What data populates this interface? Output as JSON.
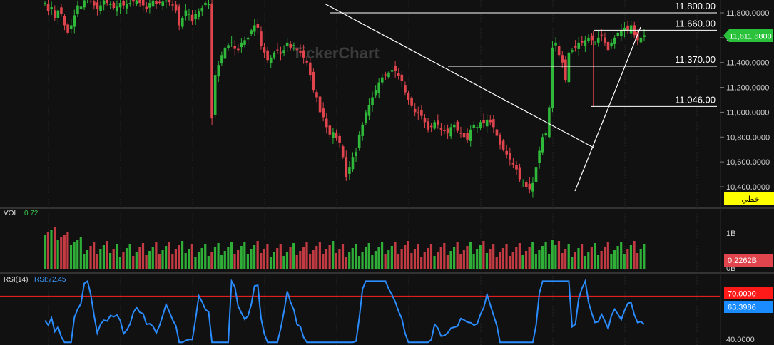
{
  "watermark": "TickerChart",
  "main_panel": {
    "y_ticks": [
      "11,800.0000",
      "11,600.0000",
      "11,400.0000",
      "11,200.0000",
      "11,000.0000",
      "10,800.0000",
      "10,600.0000",
      "10,400.0000"
    ],
    "current_price": "11,611.6800",
    "horizontal_levels": [
      "11,800.00",
      "11,660.00",
      "11,370.00",
      "11,046.00"
    ],
    "type_badge": "خطي",
    "colors": {
      "up": "#2fb83a",
      "down": "#e0454d",
      "price_badge": "#29c23a",
      "badge": "#ffff00",
      "line": "#ffffff"
    }
  },
  "volume_panel": {
    "label": "VOL",
    "value": "0.72",
    "axis_tick": "1B",
    "axis_bottom": "0B",
    "current_badge": "0.2262B"
  },
  "rsi_panel": {
    "label": "RSI(14)",
    "value_label": "RSI:72.45",
    "level_badge": "70.0000",
    "current_badge": "63.3986",
    "axis_bottom": "40.0000",
    "colors": {
      "line": "#2a8cff",
      "level": "#ff2020"
    }
  },
  "chart_data": {
    "type": "candlestick",
    "y_range": [
      10350,
      11900
    ],
    "levels": [
      11800,
      11660,
      11370,
      11046
    ],
    "closes": [
      11880,
      11815,
      11845,
      11760,
      11820,
      11790,
      11700,
      11640,
      11700,
      11780,
      11860,
      11850,
      11900,
      11920,
      11890,
      11860,
      11830,
      11860,
      11900,
      11880,
      11870,
      11840,
      11850,
      11880,
      11860,
      11870,
      11880,
      11890,
      11900,
      11880,
      11860,
      11830,
      11880,
      11900,
      11870,
      11880,
      11890,
      11900,
      11885,
      11860,
      11820,
      11700,
      11760,
      11820,
      11790,
      11730,
      11790,
      11810,
      11840,
      11880,
      11870,
      10950,
      11300,
      11380,
      11460,
      11520,
      11540,
      11560,
      11510,
      11500,
      11560,
      11580,
      11600,
      11660,
      11700,
      11680,
      11530,
      11480,
      11420,
      11440,
      11480,
      11500,
      11470,
      11500,
      11560,
      11520,
      11540,
      11500,
      11480,
      11440,
      11400,
      11300,
      11180,
      11120,
      11000,
      10960,
      10880,
      10820,
      10840,
      10790,
      10750,
      10640,
      10480,
      10560,
      10640,
      10680,
      10820,
      10900,
      11000,
      11060,
      11120,
      11180,
      11240,
      11280,
      11300,
      11320,
      11340,
      11330,
      11290,
      11250,
      11160,
      11100,
      11050,
      11000,
      10990,
      10970,
      10920,
      10860,
      10880,
      10920,
      10900,
      10860,
      10850,
      10830,
      10880,
      10900,
      10850,
      10830,
      10800,
      10780,
      10860,
      10900,
      10880,
      10920,
      10910,
      10940,
      10920,
      10880,
      10810,
      10740,
      10700,
      10660,
      10620,
      10580,
      10540,
      10460,
      10440,
      10400,
      10380,
      10430,
      10560,
      10690,
      10800,
      10830,
      11040,
      11520,
      11560,
      11460,
      11400,
      11260,
      11480,
      11500,
      11520,
      11560,
      11560,
      11580,
      11600,
      11580,
      11560,
      11600,
      11620,
      11560,
      11500,
      11560,
      11600,
      11640,
      11660,
      11680,
      11660,
      11700,
      11620,
      11580,
      11600,
      11620
    ],
    "volume_scale": {
      "unit": "B",
      "max": 1.2
    },
    "rsi_range": [
      34,
      87
    ],
    "rsi_level": 70
  }
}
